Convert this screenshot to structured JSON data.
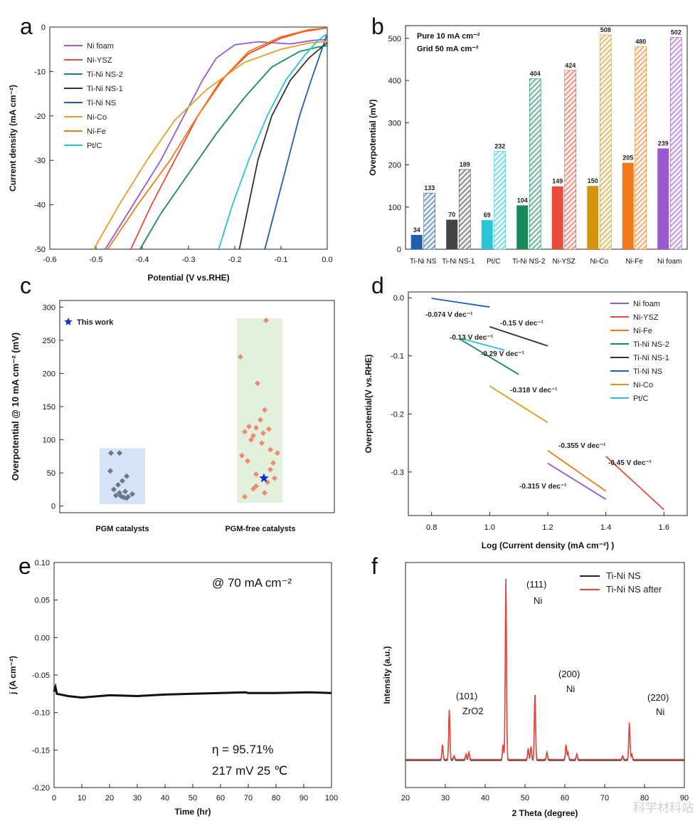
{
  "panels": {
    "a": {
      "letter": "a"
    },
    "b": {
      "letter": "b"
    },
    "c": {
      "letter": "c"
    },
    "d": {
      "letter": "d"
    },
    "e": {
      "letter": "e"
    },
    "f": {
      "letter": "f"
    }
  },
  "watermark": "科学材料站",
  "chart_data": [
    {
      "id": "a",
      "type": "line",
      "xlabel": "Potential (V vs.RHE)",
      "ylabel": "Current density (mA cm⁻²)",
      "xlim": [
        -0.6,
        0.0
      ],
      "ylim": [
        -50,
        0
      ],
      "xticks": [
        "-0.6",
        "-0.5",
        "-0.4",
        "-0.3",
        "-0.2",
        "-0.1",
        "0.0"
      ],
      "yticks": [
        "-50",
        "-40",
        "-30",
        "-20",
        "-10",
        "0"
      ],
      "legend_position": "top-left",
      "series": [
        {
          "name": "Ni foam",
          "color": "#9b59d0",
          "points": [
            [
              -0.48,
              -50
            ],
            [
              -0.42,
              -40
            ],
            [
              -0.36,
              -30
            ],
            [
              -0.31,
              -20
            ],
            [
              -0.27,
              -12
            ],
            [
              -0.24,
              -7
            ],
            [
              -0.2,
              -4
            ],
            [
              -0.15,
              -3.3
            ],
            [
              -0.08,
              -3.8
            ],
            [
              -0.03,
              -3
            ],
            [
              0.0,
              -2.8
            ]
          ]
        },
        {
          "name": "Ni-YSZ",
          "color": "#e74c3c",
          "points": [
            [
              -0.425,
              -50
            ],
            [
              -0.38,
              -40
            ],
            [
              -0.33,
              -30
            ],
            [
              -0.28,
              -20
            ],
            [
              -0.23,
              -12
            ],
            [
              -0.17,
              -6
            ],
            [
              -0.1,
              -2.5
            ],
            [
              -0.05,
              -1
            ],
            [
              0.0,
              -0.2
            ]
          ]
        },
        {
          "name": "Ti-Ni NS-2",
          "color": "#1a8a5a",
          "points": [
            [
              -0.405,
              -50
            ],
            [
              -0.36,
              -42
            ],
            [
              -0.3,
              -33
            ],
            [
              -0.24,
              -24
            ],
            [
              -0.18,
              -16
            ],
            [
              -0.12,
              -9
            ],
            [
              -0.06,
              -5.5
            ],
            [
              -0.02,
              -4.5
            ],
            [
              0.0,
              -4.2
            ]
          ]
        },
        {
          "name": "Ti-Ni NS-1",
          "color": "#333333",
          "points": [
            [
              -0.19,
              -50
            ],
            [
              -0.17,
              -40
            ],
            [
              -0.15,
              -30
            ],
            [
              -0.12,
              -20
            ],
            [
              -0.08,
              -12
            ],
            [
              -0.04,
              -7
            ],
            [
              0.0,
              -3.5
            ]
          ]
        },
        {
          "name": "Ti-Ni NS",
          "color": "#1f5fb0",
          "points": [
            [
              -0.135,
              -50
            ],
            [
              -0.11,
              -40
            ],
            [
              -0.085,
              -30
            ],
            [
              -0.06,
              -20
            ],
            [
              -0.035,
              -12
            ],
            [
              -0.015,
              -6
            ],
            [
              0.0,
              -1.5
            ]
          ]
        },
        {
          "name": "Ni-Co",
          "color": "#e0a12a",
          "points": [
            [
              -0.505,
              -50
            ],
            [
              -0.45,
              -40
            ],
            [
              -0.39,
              -30
            ],
            [
              -0.33,
              -21
            ],
            [
              -0.26,
              -14
            ],
            [
              -0.18,
              -8
            ],
            [
              -0.1,
              -5
            ],
            [
              -0.04,
              -3.6
            ],
            [
              0.0,
              -3.2
            ]
          ]
        },
        {
          "name": "Ni-Fe",
          "color": "#f07a1a",
          "points": [
            [
              -0.475,
              -50
            ],
            [
              -0.41,
              -40
            ],
            [
              -0.34,
              -30
            ],
            [
              -0.28,
              -20
            ],
            [
              -0.22,
              -11
            ],
            [
              -0.17,
              -5.5
            ],
            [
              -0.1,
              -2.2
            ],
            [
              -0.04,
              -0.6
            ],
            [
              0.0,
              -0.2
            ]
          ]
        },
        {
          "name": "Pt/C",
          "color": "#2bc3d9",
          "points": [
            [
              -0.235,
              -50
            ],
            [
              -0.205,
              -40
            ],
            [
              -0.17,
              -30
            ],
            [
              -0.13,
              -20
            ],
            [
              -0.09,
              -12
            ],
            [
              -0.05,
              -6.5
            ],
            [
              -0.02,
              -3
            ],
            [
              0.0,
              -1.5
            ]
          ]
        }
      ]
    },
    {
      "id": "b",
      "type": "bar",
      "ylabel": "Overpotential (mV)",
      "ylim": [
        0,
        530
      ],
      "yticks": [
        "0",
        "100",
        "200",
        "300",
        "400",
        "500"
      ],
      "annotations": [
        "Pure  10 mA cm⁻²",
        "Grid  50 mA cm⁻²"
      ],
      "categories": [
        "Ti-Ni NS",
        "Ti-Ni NS-1",
        "Pt/C",
        "Ti-Ni NS-2",
        "Ni-YSZ",
        "Ni-Co",
        "Ni-Fe",
        "Ni foam"
      ],
      "colors": [
        "#1f5fb0",
        "#444444",
        "#2bc3d9",
        "#1a8a5a",
        "#e74c3c",
        "#d4950c",
        "#f07a1a",
        "#9b59d0"
      ],
      "series": [
        {
          "name": "Pure  10 mA cm⁻²",
          "values": [
            34,
            70,
            69,
            104,
            149,
            150,
            205,
            239
          ],
          "labels": [
            "34",
            "70",
            "69",
            "104",
            "149",
            "150",
            "205",
            "239"
          ]
        },
        {
          "name": "Grid  50 mA cm⁻²",
          "values": [
            133,
            189,
            232,
            404,
            424,
            508,
            480,
            502
          ],
          "labels": [
            "133",
            "189",
            "232",
            "404",
            "424",
            "508",
            "480",
            "502"
          ]
        }
      ]
    },
    {
      "id": "c",
      "type": "scatter",
      "ylabel": "Overpotential @ 10 mA cm⁻² (mV)",
      "ylim": [
        -10,
        310
      ],
      "yticks": [
        "0",
        "50",
        "100",
        "150",
        "200",
        "250",
        "300"
      ],
      "categories": [
        "PGM catalysts",
        "PGM-free catalysts"
      ],
      "legend": "This work",
      "pgm": [
        80,
        80,
        53,
        45,
        38,
        32,
        25,
        22,
        20,
        18,
        16,
        15,
        14,
        13,
        12
      ],
      "pgm_free": [
        280,
        225,
        185,
        145,
        130,
        120,
        118,
        116,
        112,
        110,
        106,
        100,
        95,
        85,
        80,
        76,
        68,
        65,
        55,
        48,
        42,
        36,
        30,
        26,
        20,
        14
      ],
      "this_work": 42
    },
    {
      "id": "d",
      "type": "line",
      "xlabel": "Log (Current density (mA cm⁻²) )",
      "ylabel": "Overpotential(V vs.RHE)",
      "xlim": [
        0.72,
        1.68
      ],
      "ylim": [
        -0.375,
        0.01
      ],
      "xticks": [
        "0.8",
        "1.0",
        "1.2",
        "1.4",
        "1.6"
      ],
      "yticks": [
        "0.0",
        "-0.1",
        "-0.2",
        "-0.3"
      ],
      "legend_position": "top-right",
      "series": [
        {
          "name": "Ni foam",
          "color": "#9b59d0",
          "points": [
            [
              1.2,
              -0.285
            ],
            [
              1.4,
              -0.347
            ]
          ],
          "slope": "-0.315 V dec⁻¹"
        },
        {
          "name": "Ni-YSZ",
          "color": "#e74c3c",
          "points": [
            [
              1.4,
              -0.273
            ],
            [
              1.6,
              -0.365
            ]
          ],
          "slope": "-0.45 V dec⁻¹"
        },
        {
          "name": "Ni-Fe",
          "color": "#f07a1a",
          "points": [
            [
              1.2,
              -0.263
            ],
            [
              1.4,
              -0.333
            ]
          ],
          "slope": "-0.355 V dec⁻¹"
        },
        {
          "name": "Ti-Ni NS-2",
          "color": "#1a8a5a",
          "points": [
            [
              0.9,
              -0.072
            ],
            [
              1.1,
              -0.132
            ]
          ],
          "slope": "-0.29 V dec⁻¹"
        },
        {
          "name": "Ti-Ni NS-1",
          "color": "#333333",
          "points": [
            [
              1.0,
              -0.05
            ],
            [
              1.2,
              -0.083
            ]
          ],
          "slope": "-0.15 V dec⁻¹"
        },
        {
          "name": "Ti-Ni NS",
          "color": "#1f5fb0",
          "points": [
            [
              0.8,
              -0.001
            ],
            [
              1.0,
              -0.016
            ]
          ],
          "slope": "-0.074 V dec⁻¹"
        },
        {
          "name": "Ni-Co",
          "color": "#d4a017",
          "points": [
            [
              1.0,
              -0.152
            ],
            [
              1.2,
              -0.215
            ]
          ],
          "slope": "-0.318 V dec⁻¹"
        },
        {
          "name": "Pt/C",
          "color": "#2bc3d9",
          "points": [
            [
              0.9,
              -0.07
            ],
            [
              1.05,
              -0.09
            ]
          ],
          "slope": "-0.13 V dec⁻¹"
        }
      ]
    },
    {
      "id": "e",
      "type": "line",
      "xlabel": "Time (hr)",
      "ylabel": "j (A cm⁻²)",
      "xlim": [
        0,
        100
      ],
      "ylim": [
        -0.2,
        0.1
      ],
      "xticks": [
        "0",
        "10",
        "20",
        "30",
        "40",
        "50",
        "60",
        "70",
        "80",
        "90",
        "100"
      ],
      "yticks": [
        "-0.20",
        "-0.15",
        "-0.10",
        "-0.05",
        "0.00",
        "0.05",
        "0.10"
      ],
      "annotations": [
        "@ 70 mA cm⁻²",
        "η = 95.71%",
        "217 mV  25 ℃"
      ],
      "series": [
        {
          "name": "",
          "color": "#111111",
          "points": [
            [
              0,
              -0.072
            ],
            [
              0.5,
              -0.066
            ],
            [
              1,
              -0.075
            ],
            [
              5,
              -0.078
            ],
            [
              10,
              -0.08
            ],
            [
              20,
              -0.077
            ],
            [
              30,
              -0.078
            ],
            [
              40,
              -0.076
            ],
            [
              50,
              -0.075
            ],
            [
              60,
              -0.074
            ],
            [
              69,
              -0.073
            ],
            [
              70,
              -0.074
            ],
            [
              80,
              -0.074
            ],
            [
              92,
              -0.073
            ],
            [
              100,
              -0.074
            ]
          ]
        }
      ]
    },
    {
      "id": "f",
      "type": "line",
      "xlabel": "2 Theta (degree)",
      "ylabel": "Intensity (a.u.)",
      "xlim": [
        20,
        90
      ],
      "xticks": [
        "20",
        "30",
        "40",
        "50",
        "60",
        "70",
        "80",
        "90"
      ],
      "legend_position": "top-right",
      "annotations": [
        "(111)",
        "Ni",
        "(200)",
        "Ni",
        "(101)",
        "ZrO2",
        "(220)",
        "Ni"
      ],
      "series": [
        {
          "name": "Ti-Ni NS",
          "color": "#222222"
        },
        {
          "name": "Ti-Ni NS after",
          "color": "#e0473a"
        }
      ],
      "peaks": [
        [
          29.3,
          0.08
        ],
        [
          31.0,
          0.27
        ],
        [
          32.2,
          0.02
        ],
        [
          35.2,
          0.03
        ],
        [
          35.9,
          0.04
        ],
        [
          44.5,
          0.08
        ],
        [
          45.2,
          0.97
        ],
        [
          50.8,
          0.06
        ],
        [
          51.5,
          0.07
        ],
        [
          52.5,
          0.35
        ],
        [
          55.5,
          0.04
        ],
        [
          60.3,
          0.08
        ],
        [
          60.8,
          0.04
        ],
        [
          63.0,
          0.03
        ],
        [
          74.5,
          0.02
        ],
        [
          76.2,
          0.2
        ],
        [
          76.8,
          0.03
        ]
      ]
    }
  ]
}
